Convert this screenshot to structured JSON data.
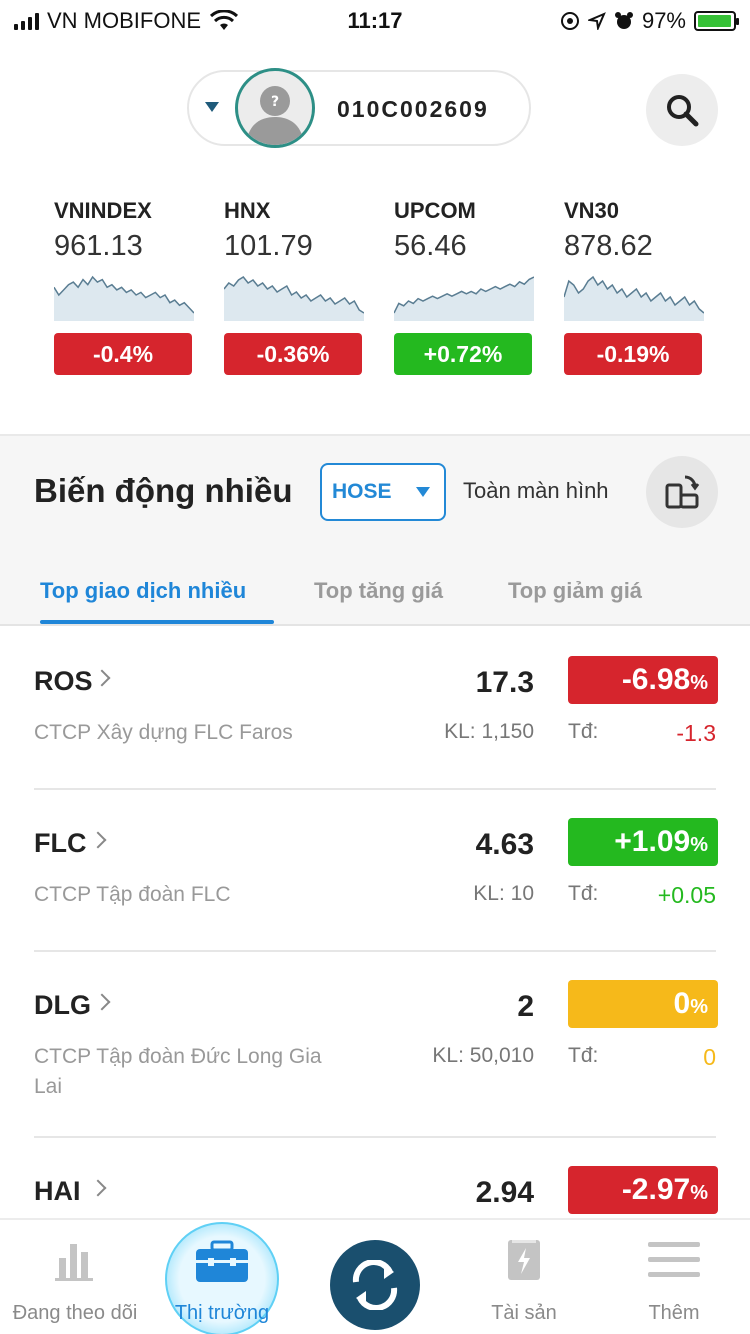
{
  "status_bar": {
    "carrier": "VN MOBIFONE",
    "time": "11:17",
    "battery": "97%",
    "battery_level": 0.97
  },
  "account": {
    "number": "010C002609"
  },
  "indices": [
    {
      "name": "VNINDEX",
      "value": "961.13",
      "change": "-0.4%",
      "direction": "down",
      "spark": [
        52,
        55,
        53,
        51,
        50,
        52,
        49,
        51,
        48,
        50,
        49,
        52,
        51,
        53,
        52,
        54,
        53,
        55,
        54,
        56,
        55,
        54,
        56,
        55,
        58,
        57,
        59,
        58,
        60,
        62
      ]
    },
    {
      "name": "HNX",
      "value": "101.79",
      "change": "-0.36%",
      "direction": "down",
      "spark": [
        55,
        53,
        54,
        52,
        51,
        53,
        52,
        54,
        53,
        55,
        54,
        56,
        55,
        54,
        57,
        56,
        58,
        57,
        59,
        58,
        57,
        59,
        58,
        60,
        59,
        58,
        60,
        59,
        62,
        63
      ]
    },
    {
      "name": "UPCOM",
      "value": "56.46",
      "change": "+0.72%",
      "direction": "up",
      "spark": [
        60,
        56,
        57,
        55,
        56,
        54,
        55,
        54,
        53,
        54,
        53,
        52,
        53,
        52,
        51,
        52,
        51,
        52,
        50,
        51,
        50,
        49,
        50,
        49,
        48,
        49,
        47,
        48,
        46,
        45
      ]
    },
    {
      "name": "VN30",
      "value": "878.62",
      "change": "-0.19%",
      "direction": "down",
      "spark": [
        54,
        50,
        51,
        53,
        52,
        50,
        49,
        51,
        50,
        52,
        51,
        53,
        52,
        54,
        53,
        52,
        54,
        53,
        55,
        54,
        53,
        55,
        54,
        56,
        55,
        54,
        56,
        55,
        57,
        58
      ]
    }
  ],
  "section": {
    "title": "Biến động nhiều",
    "exchange": "HOSE",
    "fullscreen_label": "Toàn màn hình",
    "tabs": [
      {
        "label": "Top giao dịch nhiều",
        "active": true
      },
      {
        "label": "Top tăng giá",
        "active": false
      },
      {
        "label": "Top giảm giá",
        "active": false
      }
    ]
  },
  "stocks": [
    {
      "symbol": "ROS",
      "company": "CTCP Xây dựng FLC Faros",
      "price": "17.3",
      "volume": "KL: 1,150",
      "pct_value": "-6.98",
      "pct_unit": "%",
      "td_label": "Tđ:",
      "td_value": "-1.3",
      "color": "#d6252d",
      "td_color": "#d6252d"
    },
    {
      "symbol": "FLC",
      "company": "CTCP Tập đoàn FLC",
      "price": "4.63",
      "volume": "KL: 10",
      "pct_value": "+1.09",
      "pct_unit": "%",
      "td_label": "Tđ:",
      "td_value": "+0.05",
      "color": "#24b91f",
      "td_color": "#24b91f"
    },
    {
      "symbol": "DLG",
      "company": "CTCP Tập đoàn Đức Long Gia Lai",
      "price": "2",
      "volume": "KL: 50,010",
      "pct_value": "0",
      "pct_unit": "%",
      "td_label": "Tđ:",
      "td_value": "0",
      "color": "#f6b91a",
      "td_color": "#f6b91a"
    },
    {
      "symbol": "HAI",
      "company": "",
      "price": "2.94",
      "volume": "",
      "pct_value": "-2.97",
      "pct_unit": "%",
      "td_label": "",
      "td_value": "",
      "color": "#d6252d",
      "td_color": "#d6252d"
    }
  ],
  "nav": [
    {
      "label": "Đang theo dõi",
      "icon": "bar-chart-icon",
      "active": false
    },
    {
      "label": "Thị trường",
      "icon": "briefcase-icon",
      "active": true
    },
    {
      "label": "",
      "icon": "exchange-icon",
      "active": false
    },
    {
      "label": "Tài sản",
      "icon": "wallet-icon",
      "active": false
    },
    {
      "label": "Thêm",
      "icon": "menu-icon",
      "active": false
    }
  ]
}
